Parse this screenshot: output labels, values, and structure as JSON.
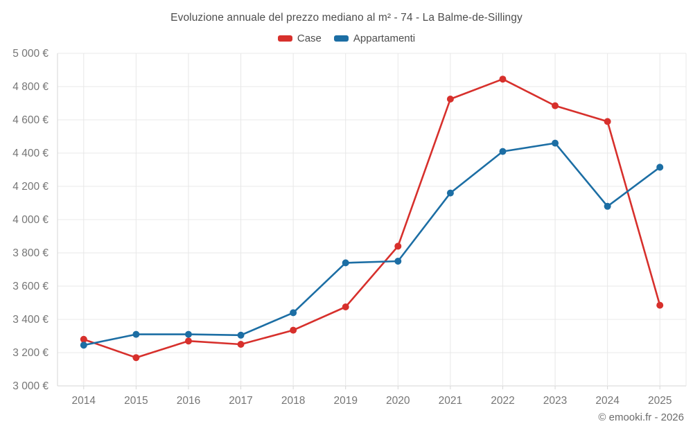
{
  "title": "Evoluzione annuale del prezzo mediano al m² - 74 - La Balme-de-Sillingy",
  "attribution": "© emooki.fr - 2026",
  "colors": {
    "case_red": "#d7302c",
    "appartamenti_blue": "#1c6ea4",
    "gridline": "#e8e8e8",
    "axis_line": "#d6d6d6",
    "tick_label": "#757575",
    "title_text": "#4d4d4d"
  },
  "chart_data": {
    "type": "line",
    "categories": [
      "2014",
      "2015",
      "2016",
      "2017",
      "2018",
      "2019",
      "2020",
      "2021",
      "2022",
      "2023",
      "2024",
      "2025"
    ],
    "series": [
      {
        "name": "Case",
        "color": "#d7302c",
        "values": [
          3280,
          3170,
          3270,
          3250,
          3335,
          3475,
          3840,
          4725,
          4845,
          4685,
          4590,
          3485
        ]
      },
      {
        "name": "Appartamenti",
        "color": "#1c6ea4",
        "values": [
          3245,
          3310,
          3310,
          3305,
          3440,
          3740,
          3750,
          4160,
          4410,
          4460,
          4080,
          4315
        ]
      }
    ],
    "ylabel": "",
    "xlabel": "",
    "ylim": [
      3000,
      5000
    ],
    "y_step": 200,
    "y_tick_suffix": " €",
    "grid": true,
    "legend_position": "top"
  }
}
